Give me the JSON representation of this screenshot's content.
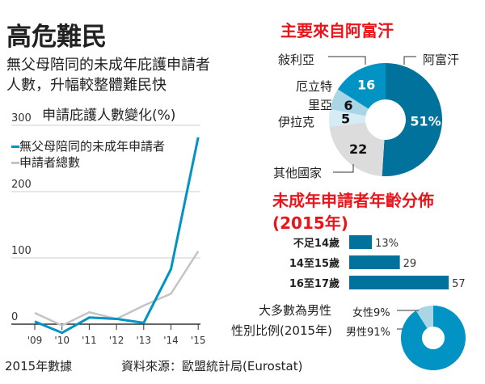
{
  "title": "高危難民",
  "subtitle": [
    "無父母陪同的未成年庇護申請者",
    "人數，升幅較整體難民快"
  ],
  "footer": {
    "note": "2015年數據",
    "source": "資料來源：歐盟統計局(Eurostat)"
  },
  "colors": {
    "dark": "#00729b",
    "mid": "#0093c4",
    "light": "#a9d5e5",
    "pale": "#d6ecf4",
    "gray": "#dcdcdc",
    "red": "#e8151b",
    "grayline": "#c4c4c4"
  },
  "chart_data": [
    {
      "type": "line",
      "title": "申請庇護人數變化(%)",
      "x": [
        "'09",
        "'10",
        "'11",
        "'12",
        "'13",
        "'14",
        "'15"
      ],
      "yticks": [
        0,
        100,
        200,
        300
      ],
      "ylim": [
        -20,
        300
      ],
      "series": [
        {
          "name": "無父母陪同的未成年申請者",
          "color": "#0093c4",
          "values": [
            4,
            -13,
            10,
            8,
            2,
            83,
            282
          ]
        },
        {
          "name": "申請者總數",
          "color": "#c4c4c4",
          "values": [
            17,
            -2,
            18,
            8,
            28,
            46,
            110
          ]
        }
      ]
    },
    {
      "type": "pie",
      "title": "主要來自阿富汗",
      "unit": "%",
      "slices": [
        {
          "label": "阿富汗",
          "value": 51,
          "text": "51%",
          "color": "#00729b"
        },
        {
          "label": "其他國家",
          "value": 22,
          "text": "22",
          "color": "#dcdcdc"
        },
        {
          "label": "伊拉克",
          "value": 5,
          "text": "5",
          "color": "#d6ecf4"
        },
        {
          "label": "厄立特里亞",
          "value": 6,
          "text": "6",
          "color": "#a9d5e5"
        },
        {
          "label": "敍利亞",
          "value": 16,
          "text": "16",
          "color": "#0093c4"
        }
      ]
    },
    {
      "type": "bar",
      "title": "未成年申請者年齡分佈(2015年)",
      "categories": [
        "不足14歲",
        "14至15歲",
        "16至17歲"
      ],
      "values": [
        13,
        29,
        57
      ],
      "value_labels": [
        "13%",
        "29",
        "57"
      ]
    },
    {
      "type": "pie",
      "title": "大多數為男性",
      "subtitle": "性別比例(2015年)",
      "slices": [
        {
          "label": "男性91%",
          "value": 91,
          "color": "#0093c4"
        },
        {
          "label": "女性9%",
          "value": 9,
          "color": "#a9d5e5"
        }
      ]
    }
  ]
}
